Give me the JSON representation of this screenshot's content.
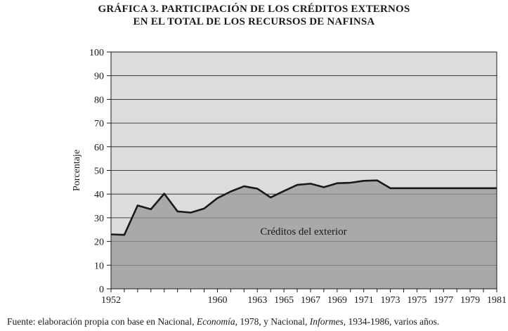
{
  "chart_data": {
    "type": "area",
    "title": [
      "GRÁFICA 3. PARTICIPACIÓN DE LOS CRÉDITOS EXTERNOS",
      "EN EL TOTAL DE LOS RECURSOS DE NAFINSA"
    ],
    "ylabel": "Porcentaje",
    "xlabel": "",
    "ylim": [
      0,
      100
    ],
    "yticks": [
      0,
      10,
      20,
      30,
      40,
      50,
      60,
      70,
      80,
      90,
      100
    ],
    "xlim": [
      1952,
      1981
    ],
    "xticks": [
      1952,
      1960,
      1963,
      1965,
      1967,
      1969,
      1971,
      1973,
      1975,
      1977,
      1979,
      1981
    ],
    "grid": true,
    "area_label": "Créditos del exterior",
    "x": [
      1952,
      1953,
      1954,
      1955,
      1956,
      1957,
      1958,
      1959,
      1960,
      1961,
      1962,
      1963,
      1964,
      1965,
      1966,
      1967,
      1968,
      1969,
      1970,
      1971,
      1972,
      1973,
      1974,
      1975,
      1976,
      1977,
      1978,
      1979,
      1980,
      1981
    ],
    "series": [
      {
        "name": "Créditos del exterior",
        "values": [
          23.0,
          22.8,
          35.2,
          33.6,
          40.2,
          32.7,
          32.2,
          33.9,
          38.3,
          41.1,
          43.3,
          42.3,
          38.6,
          41.3,
          43.9,
          44.4,
          42.9,
          44.6,
          44.8,
          45.6,
          45.8,
          42.5,
          42.5,
          42.5,
          42.5,
          42.5,
          42.5,
          42.5,
          42.5,
          42.5
        ]
      }
    ],
    "colors": {
      "area": "#a9a9a9",
      "plot_bg": "#dcdcdc",
      "line": "#1a1a1a"
    }
  },
  "source": {
    "prefix": "Fuente: elaboración propia con base en Nacional, ",
    "italic1": "Economía",
    "middle": ", 1978, y Nacional, ",
    "italic2": "Informes",
    "suffix": ", 1934-1986, varios años."
  }
}
